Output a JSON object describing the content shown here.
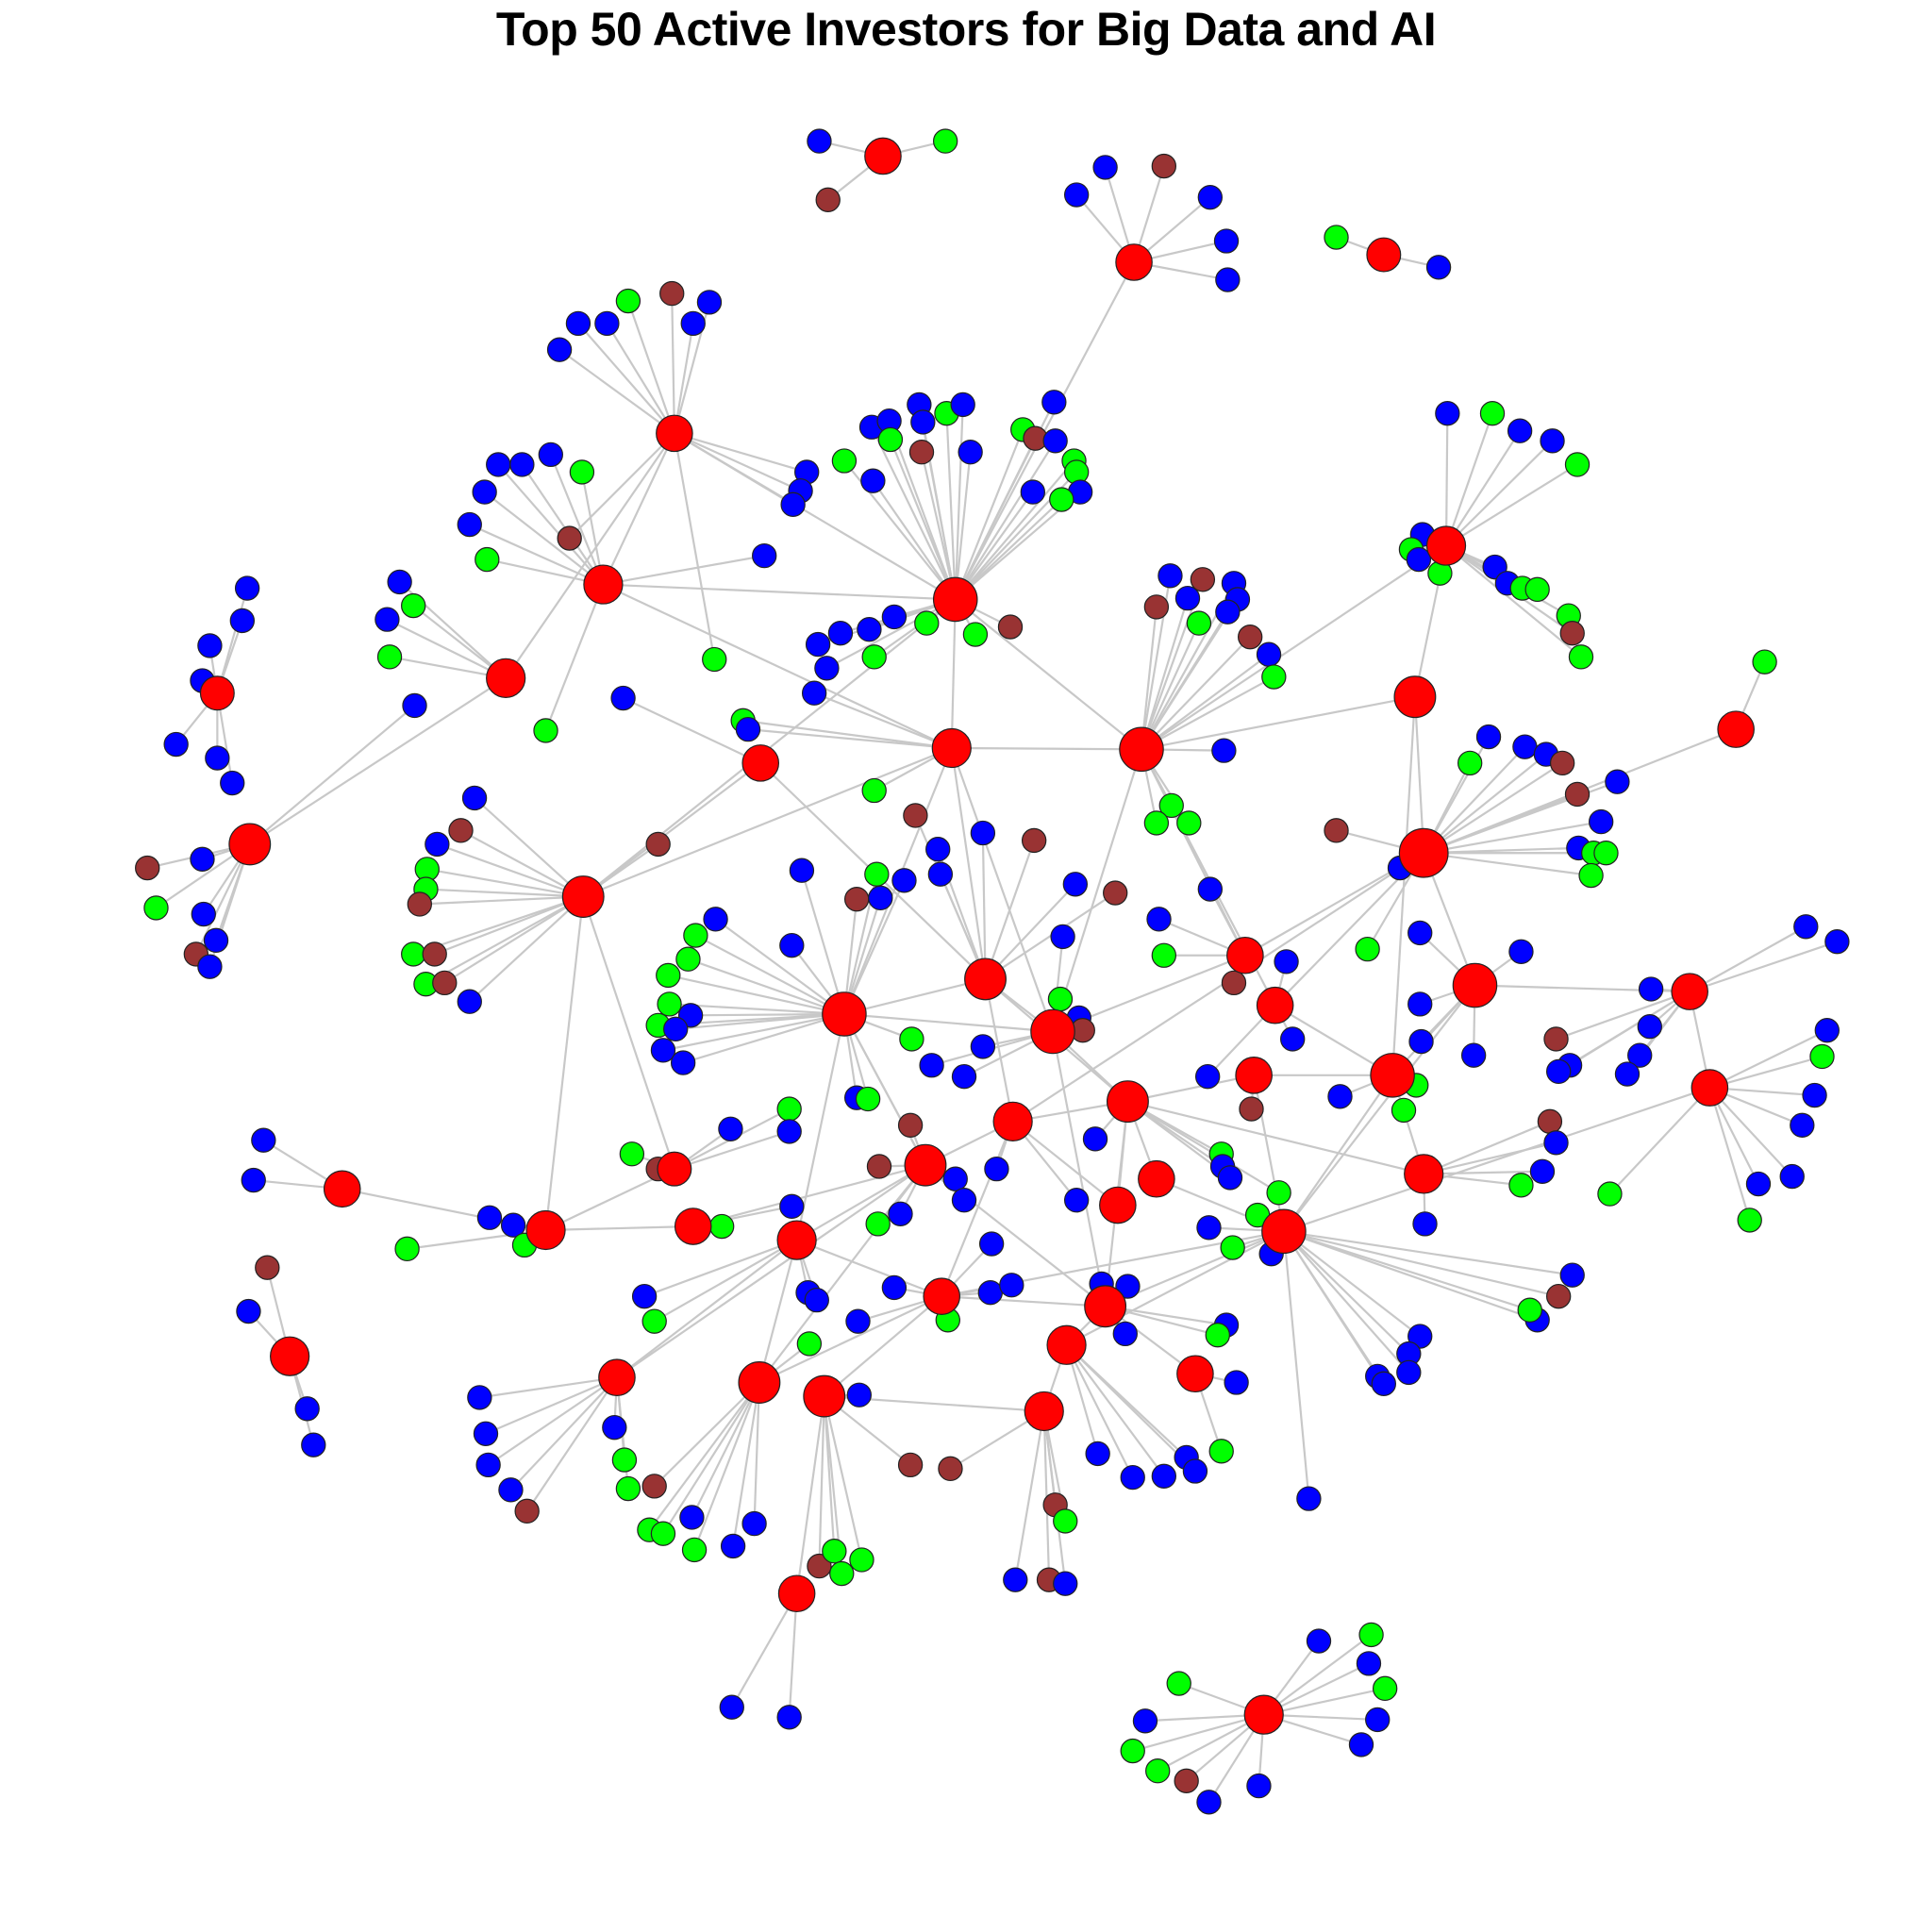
{
  "title": "Top 50 Active Investors for Big Data and AI",
  "colors": {
    "investor": "#ff0000",
    "company_a": "#0000ff",
    "company_b": "#00ff00",
    "company_c": "#993333",
    "edge": "#c8c8c8",
    "node_border": "#222222"
  },
  "graph": {
    "node_type_counts": {
      "investor": 50,
      "company_a": 216,
      "company_b": 87,
      "company_c": 43
    }
  }
}
